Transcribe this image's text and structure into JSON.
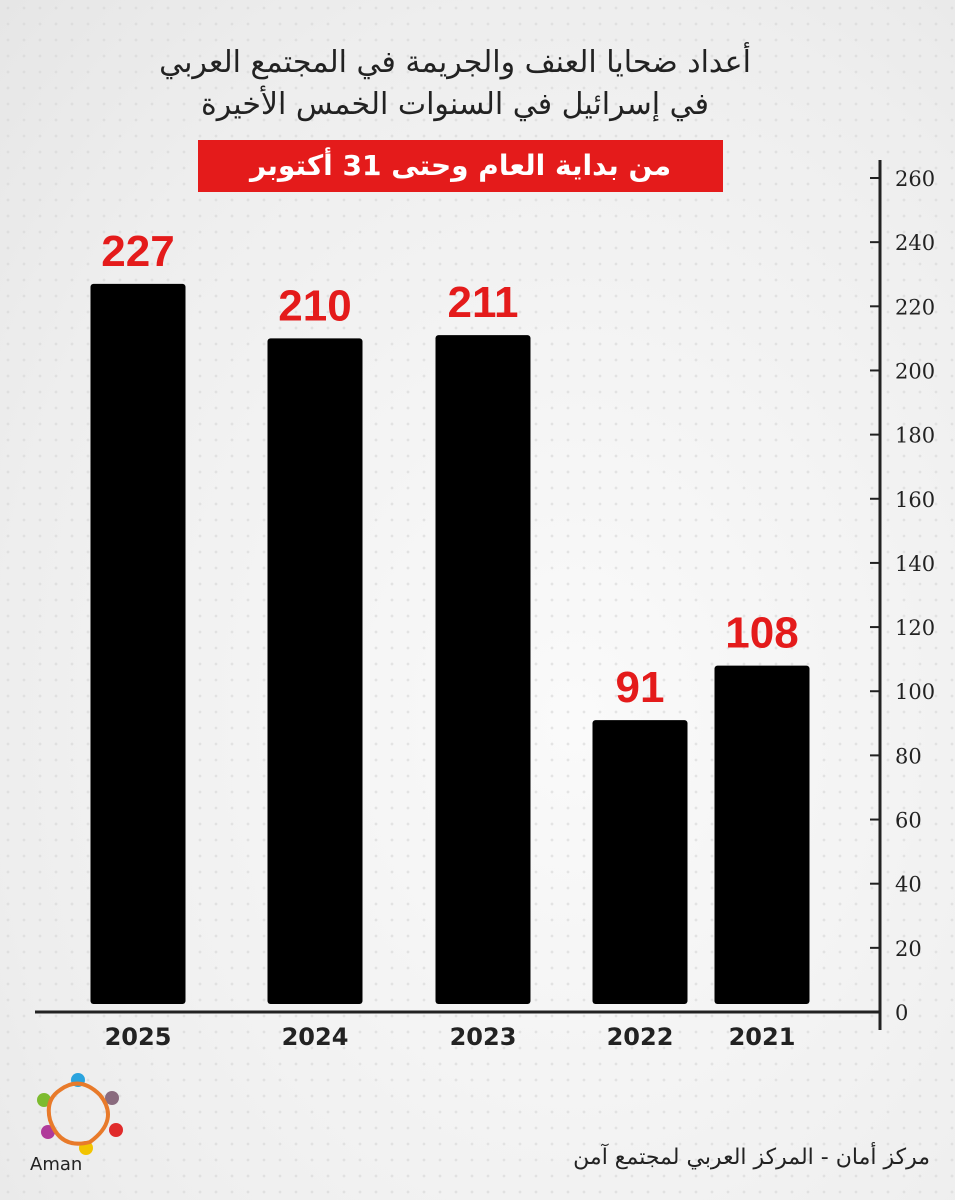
{
  "chart_data": {
    "type": "bar",
    "title": "أعداد ضحايا العنف والجريمة في المجتمع العربي في إسرائيل في السنوات الخمس الأخيرة",
    "title_lines": [
      "أعداد ضحايا العنف والجريمة في المجتمع العربي",
      "في إسرائيل في السنوات الخمس الأخيرة"
    ],
    "subtitle": "من بداية العام وحتى 31 أكتوبر",
    "categories": [
      "2025",
      "2024",
      "2023",
      "2022",
      "2021"
    ],
    "values": [
      227,
      210,
      211,
      91,
      108
    ],
    "ylim": [
      0,
      260
    ],
    "yticks": [
      0,
      20,
      40,
      60,
      80,
      100,
      120,
      140,
      160,
      180,
      200,
      220,
      240,
      260
    ],
    "y_axis_position": "right",
    "grid": false,
    "bar_color": "#000000",
    "label_color": "#e41b1b",
    "subtitle_bg": "#e41b1b"
  },
  "footer": {
    "source": "مركز أمان  - المركز العربي لمجتمع آمن"
  },
  "logo": {
    "text": "Aman أمان"
  }
}
